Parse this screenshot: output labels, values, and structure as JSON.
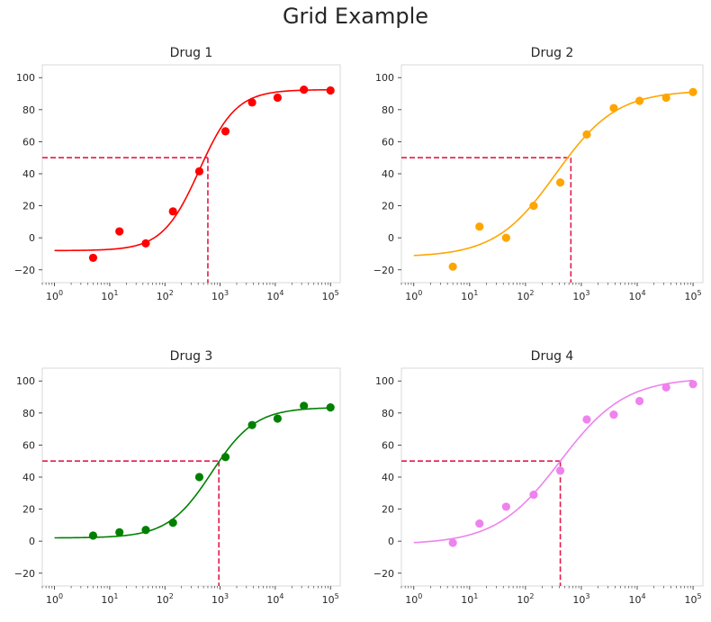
{
  "figure": {
    "title": "Grid Example"
  },
  "chart_data": [
    {
      "type": "scatter",
      "title": "Drug 1",
      "color": "#ff0000",
      "threshold_color": "#e6194b",
      "x_scale": "log",
      "xlim": [
        0.6,
        150000
      ],
      "ylim": [
        -28,
        108
      ],
      "x_ticks": [
        1,
        10,
        100,
        1000,
        10000,
        100000
      ],
      "x_tick_labels": [
        [
          "10",
          "0"
        ],
        [
          "10",
          "1"
        ],
        [
          "10",
          "2"
        ],
        [
          "10",
          "3"
        ],
        [
          "10",
          "4"
        ],
        [
          "10",
          "5"
        ]
      ],
      "y_ticks": [
        -20,
        0,
        20,
        40,
        60,
        80,
        100
      ],
      "y_tick_labels": [
        "−20",
        "0",
        "20",
        "40",
        "60",
        "80",
        "100"
      ],
      "points": {
        "x": [
          5,
          15,
          45,
          140,
          420,
          1250,
          3800,
          11000,
          33000,
          100000
        ],
        "y": [
          -12.5,
          4,
          -3.5,
          16.5,
          41.5,
          66.5,
          84.5,
          87.5,
          92.5,
          92
        ]
      },
      "fit": {
        "bottom": -8,
        "top": 92.5,
        "ec50": 420,
        "hill": 1.3
      },
      "threshold": {
        "y": 50,
        "x": 600
      },
      "grid": false
    },
    {
      "type": "scatter",
      "title": "Drug 2",
      "color": "#ffa500",
      "threshold_color": "#e6194b",
      "x_scale": "log",
      "xlim": [
        0.6,
        150000
      ],
      "ylim": [
        -28,
        108
      ],
      "x_ticks": [
        1,
        10,
        100,
        1000,
        10000,
        100000
      ],
      "x_tick_labels": [
        [
          "10",
          "0"
        ],
        [
          "10",
          "1"
        ],
        [
          "10",
          "2"
        ],
        [
          "10",
          "3"
        ],
        [
          "10",
          "4"
        ],
        [
          "10",
          "5"
        ]
      ],
      "y_ticks": [
        -20,
        0,
        20,
        40,
        60,
        80,
        100
      ],
      "y_tick_labels": [
        "−20",
        "0",
        "20",
        "40",
        "60",
        "80",
        "100"
      ],
      "points": {
        "x": [
          5,
          15,
          45,
          140,
          420,
          1250,
          3800,
          11000,
          33000,
          100000
        ],
        "y": [
          -18,
          7,
          0,
          20,
          34.5,
          64.5,
          81,
          85.5,
          87.5,
          91
        ]
      },
      "fit": {
        "bottom": -12,
        "top": 92,
        "ec50": 350,
        "hill": 0.8
      },
      "threshold": {
        "y": 50,
        "x": 650
      },
      "grid": false
    },
    {
      "type": "scatter",
      "title": "Drug 3",
      "color": "#008000",
      "threshold_color": "#e6194b",
      "x_scale": "log",
      "xlim": [
        0.6,
        150000
      ],
      "ylim": [
        -28,
        108
      ],
      "x_ticks": [
        1,
        10,
        100,
        1000,
        10000,
        100000
      ],
      "x_tick_labels": [
        [
          "10",
          "0"
        ],
        [
          "10",
          "1"
        ],
        [
          "10",
          "2"
        ],
        [
          "10",
          "3"
        ],
        [
          "10",
          "4"
        ],
        [
          "10",
          "5"
        ]
      ],
      "y_ticks": [
        -20,
        0,
        20,
        40,
        60,
        80,
        100
      ],
      "y_tick_labels": [
        "−20",
        "0",
        "20",
        "40",
        "60",
        "80",
        "100"
      ],
      "points": {
        "x": [
          5,
          15,
          45,
          140,
          420,
          1250,
          3800,
          11000,
          33000,
          100000
        ],
        "y": [
          3.5,
          5.5,
          7,
          11.5,
          40,
          52.5,
          72.5,
          76.5,
          84.5,
          83.5
        ]
      },
      "fit": {
        "bottom": 2,
        "top": 83.5,
        "ec50": 700,
        "hill": 1.1
      },
      "threshold": {
        "y": 50,
        "x": 950
      },
      "grid": false
    },
    {
      "type": "scatter",
      "title": "Drug 4",
      "color": "#ee82ee",
      "threshold_color": "#e6194b",
      "x_scale": "log",
      "xlim": [
        0.6,
        150000
      ],
      "ylim": [
        -28,
        108
      ],
      "x_ticks": [
        1,
        10,
        100,
        1000,
        10000,
        100000
      ],
      "x_tick_labels": [
        [
          "10",
          "0"
        ],
        [
          "10",
          "1"
        ],
        [
          "10",
          "2"
        ],
        [
          "10",
          "3"
        ],
        [
          "10",
          "4"
        ],
        [
          "10",
          "5"
        ]
      ],
      "y_ticks": [
        -20,
        0,
        20,
        40,
        60,
        80,
        100
      ],
      "y_tick_labels": [
        "−20",
        "0",
        "20",
        "40",
        "60",
        "80",
        "100"
      ],
      "points": {
        "x": [
          5,
          15,
          45,
          140,
          420,
          1250,
          3800,
          11000,
          33000,
          100000
        ],
        "y": [
          -1,
          11,
          21.5,
          29,
          44,
          76,
          79,
          87.5,
          96,
          98
        ]
      },
      "fit": {
        "bottom": -2,
        "top": 102,
        "ec50": 420,
        "hill": 0.75
      },
      "threshold": {
        "y": 50,
        "x": 420
      },
      "grid": false
    }
  ]
}
